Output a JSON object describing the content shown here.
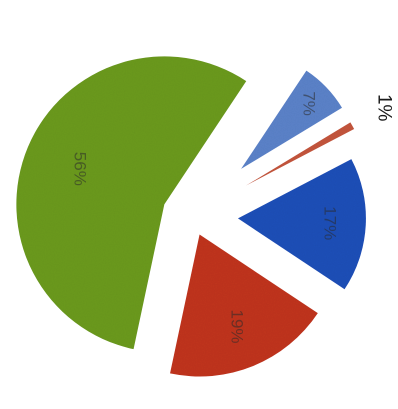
{
  "chart_data": {
    "type": "pie",
    "title": "",
    "exploded": true,
    "rotation": "rotated 90 degrees clockwise",
    "slices": [
      {
        "label": "56%",
        "value": 56,
        "color": "#6b9a1e",
        "label_position": "inside"
      },
      {
        "label": "7%",
        "value": 7,
        "color": "#5b82c9",
        "label_position": "inside"
      },
      {
        "label": "1%",
        "value": 1,
        "color": "#c4553c",
        "label_position": "outside"
      },
      {
        "label": "17%",
        "value": 17,
        "color": "#1f4fb8",
        "label_position": "inside"
      },
      {
        "label": "19%",
        "value": 19,
        "color": "#c0341c",
        "label_position": "inside"
      }
    ]
  }
}
